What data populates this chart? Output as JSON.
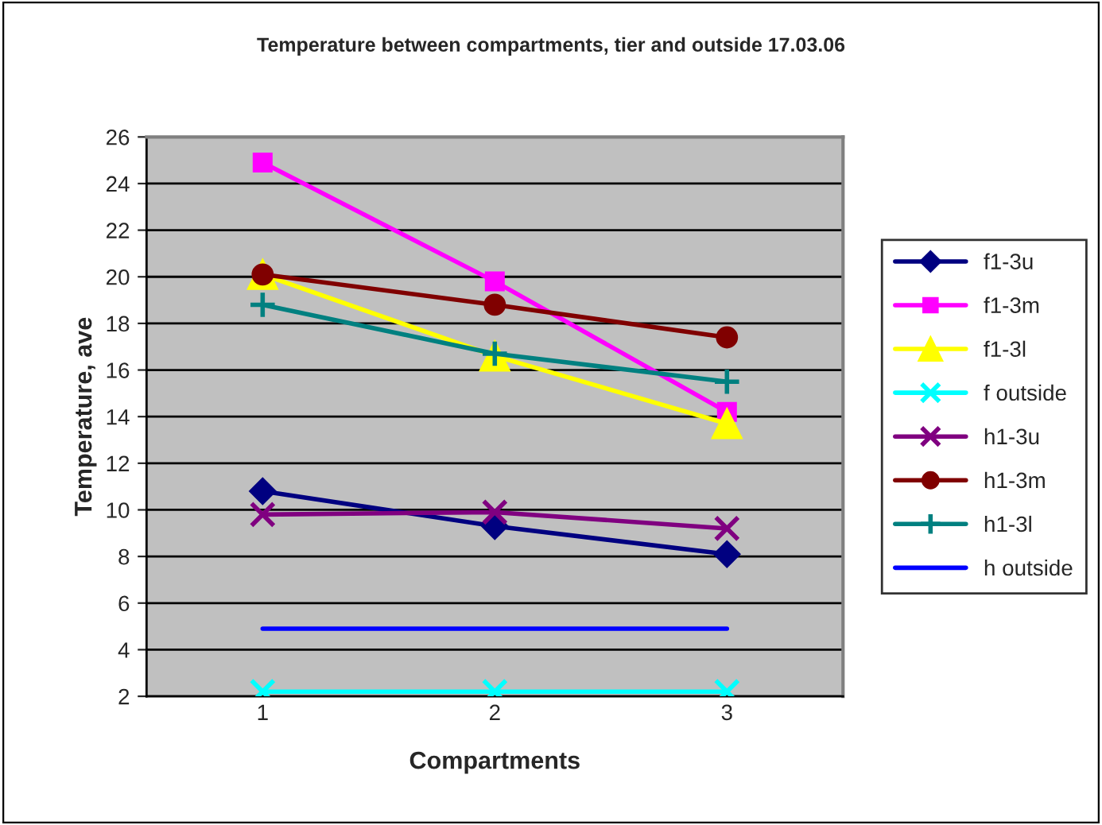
{
  "chart_data": {
    "type": "line",
    "title": "Temperature between compartments, tier and outside 17.03.06",
    "xlabel": "Compartments",
    "ylabel": "Temperature, ave",
    "categories": [
      "1",
      "2",
      "3"
    ],
    "ylim": [
      2,
      26
    ],
    "yticks": [
      2,
      4,
      6,
      8,
      10,
      12,
      14,
      16,
      18,
      20,
      22,
      24,
      26
    ],
    "grid": "y",
    "legend": "right",
    "line_style": "solid",
    "series": [
      {
        "name": "f1-3u",
        "color": "#000080",
        "marker": "diamond",
        "values": [
          10.8,
          9.3,
          8.1
        ]
      },
      {
        "name": "f1-3m",
        "color": "#ff00ff",
        "marker": "square",
        "values": [
          24.9,
          19.8,
          14.2
        ]
      },
      {
        "name": "f1-3l",
        "color": "#ffff00",
        "marker": "triangle",
        "values": [
          20.1,
          16.6,
          13.7
        ]
      },
      {
        "name": "f outside",
        "color": "#00ffff",
        "marker": "cross",
        "values": [
          2.2,
          2.2,
          2.2
        ]
      },
      {
        "name": "h1-3u",
        "color": "#800080",
        "marker": "cross",
        "values": [
          9.8,
          9.9,
          9.2
        ]
      },
      {
        "name": "h1-3m",
        "color": "#800000",
        "marker": "circle",
        "values": [
          20.1,
          18.8,
          17.4
        ]
      },
      {
        "name": "h1-3l",
        "color": "#008080",
        "marker": "plus",
        "values": [
          18.8,
          16.7,
          15.5
        ]
      },
      {
        "name": "h outside",
        "color": "#0000ff",
        "marker": "none",
        "values": [
          4.9,
          4.9,
          4.9
        ]
      }
    ]
  }
}
